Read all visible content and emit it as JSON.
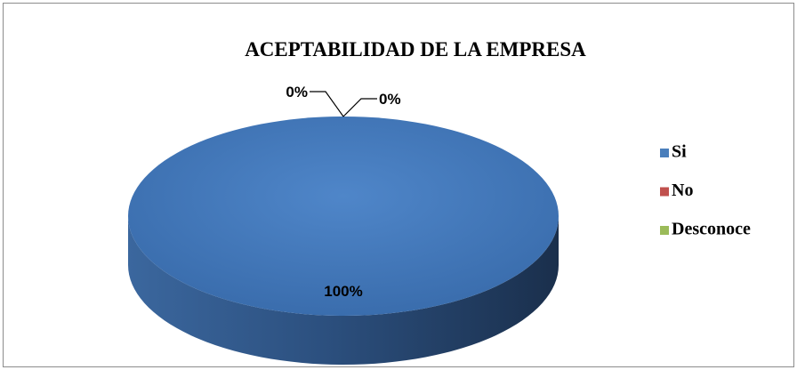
{
  "chart_data": {
    "type": "pie",
    "title": "ACEPTABILIDAD DE LA EMPRESA",
    "categories": [
      "Si",
      "No",
      "Desconoce"
    ],
    "values": [
      100,
      0,
      0
    ],
    "value_labels": [
      "100%",
      "0%",
      "0%"
    ],
    "colors": [
      "#4a7ebb",
      "#c0504d",
      "#9bbb59"
    ],
    "legend": "right"
  }
}
